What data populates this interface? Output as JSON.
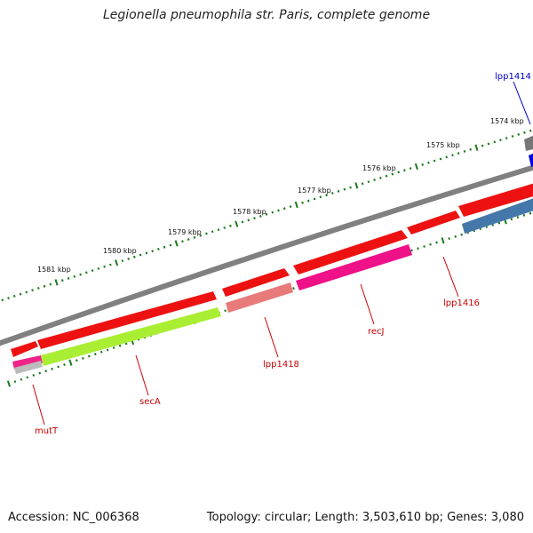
{
  "title": "Legionella pneumophila str. Paris, complete genome",
  "footer": {
    "accession": "Accession: NC_006368",
    "stats": "Topology: circular; Length: 3,503,610 bp; Genes: 3,080"
  },
  "scale_labels": [
    "1574 kbp",
    "1575 kbp",
    "1576 kbp",
    "1577 kbp",
    "1578 kbp",
    "1579 kbp",
    "1580 kbp",
    "1581 kbp"
  ],
  "gene_labels": [
    {
      "text": "lpp1414",
      "color": "#0000cc"
    },
    {
      "text": "lpp1416",
      "color": "#cc0000"
    },
    {
      "text": "recJ",
      "color": "#cc0000"
    },
    {
      "text": "lpp1418",
      "color": "#cc0000"
    },
    {
      "text": "secA",
      "color": "#cc0000"
    },
    {
      "text": "mutT",
      "color": "#cc0000"
    }
  ],
  "colors": {
    "backbone": "#808080",
    "cds_forward": "#ee1111",
    "ticks": "#1a7a1a",
    "recJ": "#ee1188",
    "lpp1418": "#e87a7a",
    "secA": "#aaee33",
    "mutT": "#ee2288",
    "lpp1414": "#0000dd",
    "rev_blue": "#4477aa"
  }
}
